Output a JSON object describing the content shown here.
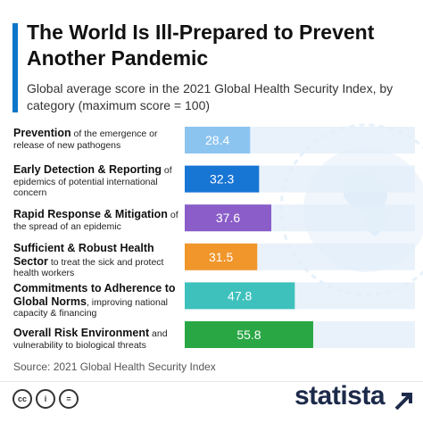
{
  "header": {
    "title": "The World Is Ill-Prepared to Prevent Another Pandemic",
    "subtitle": "Global average score in the 2021 Global Health Security Index, by category (maximum score = 100)"
  },
  "rows": [
    {
      "strong": "Prevention",
      "rest": " of the emergence or release of new pathogens"
    },
    {
      "strong": "Early Detection & Reporting",
      "rest": " of epidemics of potential international concern"
    },
    {
      "strong": "Rapid Response & Mitigation",
      "rest": " of the spread of an epidemic"
    },
    {
      "strong": "Sufficient & Robust Health Sector",
      "rest": " to treat the sick and protect health workers"
    },
    {
      "strong": "Commitments to Adherence to Global Norms",
      "rest": ", improving national capacity & financing"
    },
    {
      "strong": "Overall Risk Environment",
      "rest": " and vulnerability to biological threats"
    }
  ],
  "chart_data": {
    "type": "bar",
    "orientation": "horizontal",
    "categories": [
      "Prevention",
      "Early Detection & Reporting",
      "Rapid Response & Mitigation",
      "Sufficient & Robust Health Sector",
      "Commitments to Adherence to Global Norms",
      "Overall Risk Environment"
    ],
    "values": [
      28.4,
      32.3,
      37.6,
      31.5,
      47.8,
      55.8
    ],
    "value_labels": [
      "28.4",
      "32.3",
      "37.6",
      "31.5",
      "47.8",
      "55.8"
    ],
    "colors": [
      "#8cc4f0",
      "#1775d4",
      "#8a5dc8",
      "#f0962b",
      "#3ec1bd",
      "#2aa745"
    ],
    "track_color": "#e4eff9",
    "xlim": [
      0,
      100
    ],
    "grid": false
  },
  "footer": {
    "source": "Source: 2021 Global Health Security Index",
    "license_icons": [
      "cc",
      "i",
      "="
    ],
    "brand": "statista"
  }
}
